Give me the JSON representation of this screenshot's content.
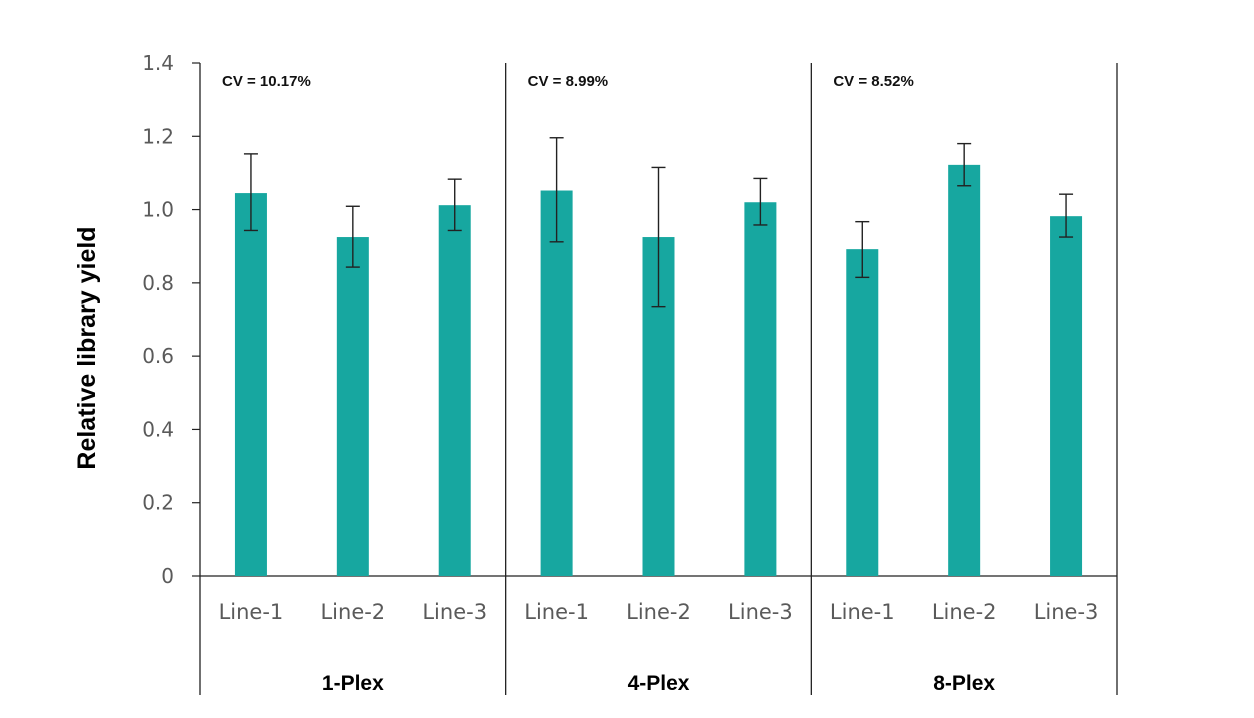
{
  "chart_data": {
    "type": "bar",
    "ylabel": "Relative library yield",
    "ylim": [
      0,
      1.4
    ],
    "yticks": [
      "0",
      "0.2",
      "0.4",
      "0.6",
      "0.8",
      "1.0",
      "1.2",
      "1.4"
    ],
    "bar_color": "#17a7a0",
    "grid": false,
    "groups": [
      {
        "name": "1-Plex",
        "cv": "CV = 10.17%",
        "categories": [
          "Line-1",
          "Line-2",
          "Line-3"
        ],
        "values": [
          1.045,
          0.925,
          1.012
        ],
        "err_low": [
          0.943,
          0.843,
          0.943
        ],
        "err_high": [
          1.152,
          1.009,
          1.083
        ]
      },
      {
        "name": "4-Plex",
        "cv": "CV = 8.99%",
        "categories": [
          "Line-1",
          "Line-2",
          "Line-3"
        ],
        "values": [
          1.052,
          0.925,
          1.02
        ],
        "err_low": [
          0.912,
          0.735,
          0.958
        ],
        "err_high": [
          1.196,
          1.115,
          1.085
        ]
      },
      {
        "name": "8-Plex",
        "cv": "CV = 8.52%",
        "categories": [
          "Line-1",
          "Line-2",
          "Line-3"
        ],
        "values": [
          0.892,
          1.122,
          0.982
        ],
        "err_low": [
          0.815,
          1.065,
          0.925
        ],
        "err_high": [
          0.967,
          1.18,
          1.042
        ]
      }
    ]
  }
}
